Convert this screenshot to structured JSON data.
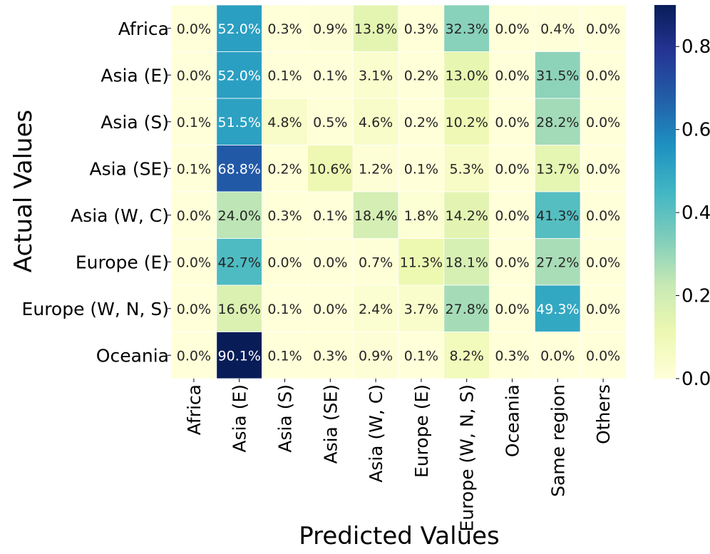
{
  "chart_data": {
    "type": "heatmap",
    "title": "",
    "xlabel": "Predicted Values",
    "ylabel": "Actual Values",
    "rows": [
      "Africa",
      "Asia (E)",
      "Asia (S)",
      "Asia (SE)",
      "Asia (W, C)",
      "Europe (E)",
      "Europe (W, N, S)",
      "Oceania"
    ],
    "columns": [
      "Africa",
      "Asia (E)",
      "Asia (S)",
      "Asia (SE)",
      "Asia (W, C)",
      "Europe (E)",
      "Europe (W, N, S)",
      "Oceania",
      "Same region",
      "Others"
    ],
    "values": [
      [
        0.0,
        0.52,
        0.003,
        0.009,
        0.138,
        0.003,
        0.323,
        0.0,
        0.004,
        0.0
      ],
      [
        0.0,
        0.52,
        0.001,
        0.001,
        0.031,
        0.002,
        0.13,
        0.0,
        0.315,
        0.0
      ],
      [
        0.001,
        0.515,
        0.048,
        0.005,
        0.046,
        0.002,
        0.102,
        0.0,
        0.282,
        0.0
      ],
      [
        0.001,
        0.688,
        0.002,
        0.106,
        0.012,
        0.001,
        0.053,
        0.0,
        0.137,
        0.0
      ],
      [
        0.0,
        0.24,
        0.003,
        0.001,
        0.184,
        0.018,
        0.142,
        0.0,
        0.413,
        0.0
      ],
      [
        0.0,
        0.427,
        0.0,
        0.0,
        0.007,
        0.113,
        0.181,
        0.0,
        0.272,
        0.0
      ],
      [
        0.0,
        0.166,
        0.001,
        0.0,
        0.024,
        0.037,
        0.278,
        0.0,
        0.493,
        0.0
      ],
      [
        0.0,
        0.901,
        0.001,
        0.003,
        0.009,
        0.001,
        0.082,
        0.003,
        0.0,
        0.0
      ]
    ],
    "annotations": [
      [
        "0.0%",
        "52.0%",
        "0.3%",
        "0.9%",
        "13.8%",
        "0.3%",
        "32.3%",
        "0.0%",
        "0.4%",
        "0.0%"
      ],
      [
        "0.0%",
        "52.0%",
        "0.1%",
        "0.1%",
        "3.1%",
        "0.2%",
        "13.0%",
        "0.0%",
        "31.5%",
        "0.0%"
      ],
      [
        "0.1%",
        "51.5%",
        "4.8%",
        "0.5%",
        "4.6%",
        "0.2%",
        "10.2%",
        "0.0%",
        "28.2%",
        "0.0%"
      ],
      [
        "0.1%",
        "68.8%",
        "0.2%",
        "10.6%",
        "1.2%",
        "0.1%",
        "5.3%",
        "0.0%",
        "13.7%",
        "0.0%"
      ],
      [
        "0.0%",
        "24.0%",
        "0.3%",
        "0.1%",
        "18.4%",
        "1.8%",
        "14.2%",
        "0.0%",
        "41.3%",
        "0.0%"
      ],
      [
        "0.0%",
        "42.7%",
        "0.0%",
        "0.0%",
        "0.7%",
        "11.3%",
        "18.1%",
        "0.0%",
        "27.2%",
        "0.0%"
      ],
      [
        "0.0%",
        "16.6%",
        "0.1%",
        "0.0%",
        "2.4%",
        "3.7%",
        "27.8%",
        "0.0%",
        "49.3%",
        "0.0%"
      ],
      [
        "0.0%",
        "90.1%",
        "0.1%",
        "0.3%",
        "0.9%",
        "0.1%",
        "8.2%",
        "0.3%",
        "0.0%",
        "0.0%"
      ]
    ],
    "colormap": "YlGnBu",
    "colorbar": {
      "vmin": 0.0,
      "vmax": 0.9,
      "ticks": [
        0.0,
        0.2,
        0.4,
        0.6,
        0.8
      ],
      "tick_labels": [
        "0.0",
        "0.2",
        "0.4",
        "0.6",
        "0.8"
      ]
    },
    "grid": false,
    "legend": "colorbar-right"
  },
  "colors": {
    "ylgnbu": [
      "#ffffd9",
      "#edf8b1",
      "#c7e9b4",
      "#7fcdbb",
      "#41b6c4",
      "#1d91c0",
      "#225ea8",
      "#253494",
      "#081d58"
    ],
    "text_dark": "#262626",
    "text_light": "#ffffff",
    "cell_border": "#ffffff",
    "axis": "#000000"
  }
}
